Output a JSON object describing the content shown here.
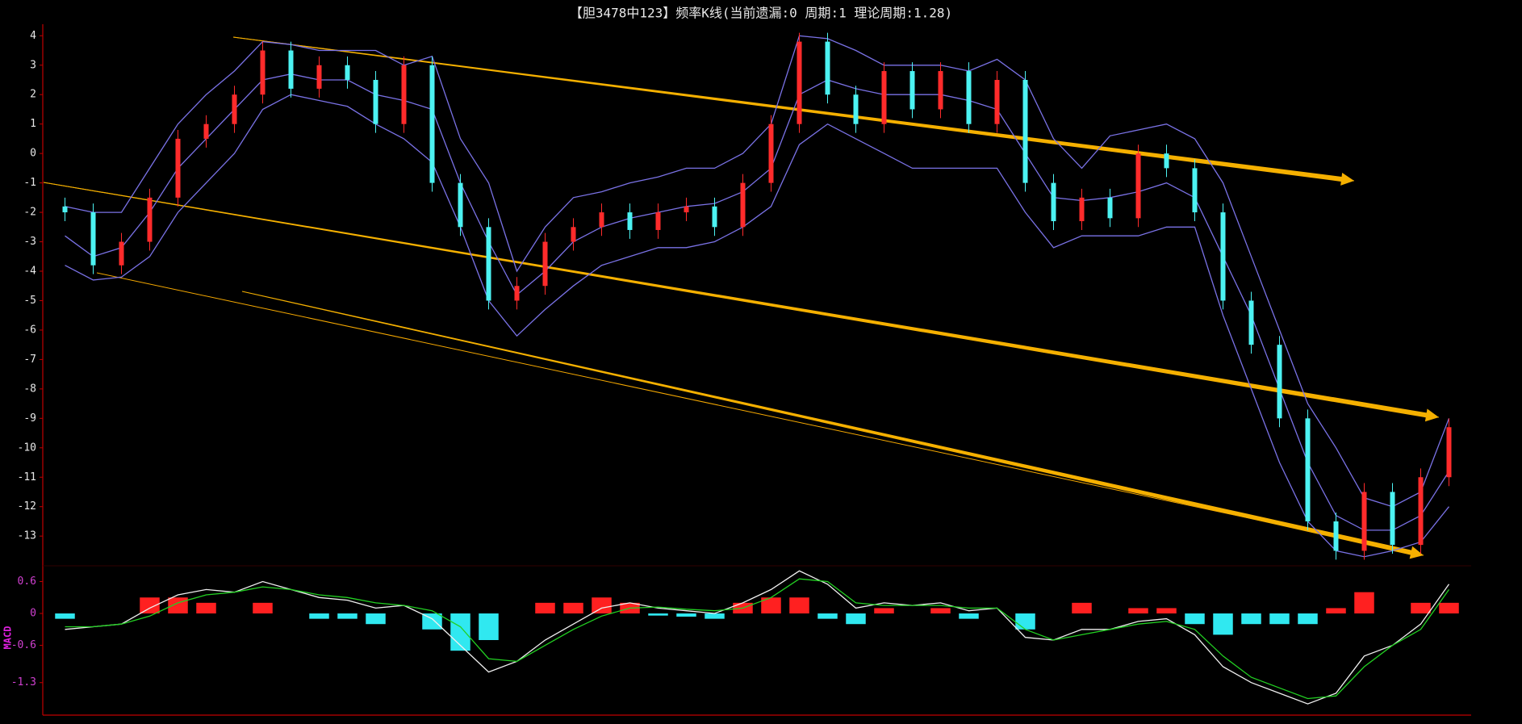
{
  "chart_data": [
    {
      "type": "candlestick",
      "title": "【胆3478中123】频率K线(当前遗漏:0 周期:1 理论周期:1.28)",
      "open": [
        -1.8,
        -2,
        -3.8,
        -3,
        -1.5,
        0.5,
        1,
        2,
        3.5,
        2.2,
        3,
        2.5,
        1,
        3,
        -1,
        -2.5,
        -5,
        -4.5,
        -3,
        -2.5,
        -2,
        -2.6,
        -2,
        -1.8,
        -2.5,
        -1,
        1,
        3.8,
        2,
        1,
        2.8,
        1.5,
        2.8,
        1,
        2.5,
        -1,
        -2.3,
        -1.5,
        -2.2,
        0,
        -0.5,
        -2,
        -5,
        -6.5,
        -9,
        -12.5,
        -13.5,
        -11.5,
        -13.3,
        -11
      ],
      "high": [
        -1.5,
        -1.7,
        -2.7,
        -1.2,
        0.8,
        1.3,
        2.3,
        3.8,
        3.8,
        3.3,
        3.3,
        2.8,
        3.3,
        3.3,
        -0.7,
        -2.2,
        -4.2,
        -2.7,
        -2.2,
        -1.7,
        -1.7,
        -1.7,
        -1.5,
        -1.5,
        -0.7,
        1.3,
        4.1,
        4.1,
        2.3,
        3.1,
        3.1,
        3.1,
        3.1,
        2.8,
        2.8,
        -0.7,
        -1.2,
        -1.2,
        0.3,
        0.3,
        -0.2,
        -1.7,
        -4.7,
        -6.2,
        -8.7,
        -12.2,
        -11.2,
        -11.2,
        -10.7,
        -9
      ],
      "low": [
        -2.3,
        -4.1,
        -4.1,
        -3.3,
        -1.8,
        0.2,
        0.7,
        1.7,
        1.9,
        1.9,
        2.2,
        0.7,
        0.7,
        -1.3,
        -2.8,
        -5.3,
        -5.3,
        -4.8,
        -3.3,
        -2.8,
        -2.9,
        -2.9,
        -2.3,
        -2.8,
        -2.8,
        -1.3,
        0.7,
        1.7,
        0.7,
        0.7,
        1.2,
        1.2,
        0.7,
        0.7,
        -1.3,
        -2.6,
        -2.6,
        -2.5,
        -2.5,
        -0.8,
        -2.3,
        -5.3,
        -6.8,
        -9.3,
        -12.8,
        -13.8,
        -13.8,
        -13.6,
        -13.6,
        -11.3
      ],
      "close": [
        -2,
        -3.8,
        -3,
        -1.5,
        0.5,
        1,
        2,
        3.5,
        2.2,
        3,
        2.5,
        1,
        3,
        -1,
        -2.5,
        -5,
        -4.5,
        -3,
        -2.5,
        -2,
        -2.6,
        -2,
        -1.8,
        -2.5,
        -1,
        1,
        3.8,
        2,
        1,
        2.8,
        1.5,
        2.8,
        1,
        2.5,
        -1,
        -2.3,
        -1.5,
        -2.2,
        0,
        -0.5,
        -2,
        -5,
        -6.5,
        -9,
        -12.5,
        -13.5,
        -11.5,
        -13.3,
        -11,
        -9.3
      ],
      "up_color": "#ff2b2b",
      "down_color": "#4cf2f2",
      "series": [
        {
          "color": "#7a72e6",
          "values": [
            -1.8,
            -2,
            -2,
            -0.5,
            1,
            2,
            2.8,
            3.8,
            3.7,
            3.5,
            3.5,
            3.5,
            3,
            3.3,
            0.5,
            -1,
            -4,
            -2.5,
            -1.5,
            -1.3,
            -1,
            -0.8,
            -0.5,
            -0.5,
            0,
            1,
            4,
            3.9,
            3.5,
            3,
            3,
            3,
            2.8,
            3.2,
            2.5,
            0.5,
            -0.5,
            0.6,
            0.8,
            1,
            0.5,
            -1,
            -3.5,
            -6,
            -8.5,
            -10,
            -11.7,
            -12,
            -11.5,
            -9
          ]
        },
        {
          "color": "#7a72e6",
          "values": [
            -2.8,
            -3.5,
            -3.2,
            -2,
            -0.5,
            0.5,
            1.5,
            2.5,
            2.7,
            2.5,
            2.5,
            2,
            1.8,
            1.5,
            -1,
            -3,
            -4.8,
            -4,
            -3,
            -2.5,
            -2.2,
            -2,
            -1.8,
            -1.7,
            -1.3,
            -0.5,
            2,
            2.5,
            2.2,
            2,
            2,
            2,
            1.8,
            1.5,
            0,
            -1.5,
            -1.6,
            -1.5,
            -1.3,
            -1,
            -1.5,
            -3.5,
            -5.5,
            -8,
            -10.5,
            -12.3,
            -12.8,
            -12.8,
            -12.3,
            -10.8
          ]
        },
        {
          "color": "#7a72e6",
          "values": [
            -3.8,
            -4.3,
            -4.2,
            -3.5,
            -2,
            -1,
            0,
            1.5,
            2,
            1.8,
            1.6,
            1,
            0.5,
            -0.3,
            -2.5,
            -5,
            -6.2,
            -5.3,
            -4.5,
            -3.8,
            -3.5,
            -3.2,
            -3.2,
            -3,
            -2.5,
            -1.8,
            0.3,
            1,
            0.5,
            0,
            -0.5,
            -0.5,
            -0.5,
            -0.5,
            -2,
            -3.2,
            -2.8,
            -2.8,
            -2.8,
            -2.5,
            -2.5,
            -5.5,
            -8,
            -10.5,
            -12.5,
            -13.5,
            -13.7,
            -13.5,
            -13.2,
            -12
          ]
        }
      ],
      "ylim": [
        -13.9,
        4.2
      ],
      "yticks": [
        4,
        3,
        2,
        1,
        0,
        -1,
        -2,
        -3,
        -4,
        -5,
        -6,
        -7,
        -8,
        -9,
        -10,
        -11,
        -12,
        -13
      ]
    },
    {
      "type": "macd",
      "ylabel": "MACD",
      "series": [
        {
          "color": "#f0f0f0",
          "values": [
            -0.3,
            -0.25,
            -0.2,
            0.1,
            0.35,
            0.45,
            0.4,
            0.6,
            0.45,
            0.3,
            0.25,
            0.1,
            0.15,
            -0.1,
            -0.6,
            -1.1,
            -0.9,
            -0.5,
            -0.2,
            0.1,
            0.2,
            0.1,
            0.05,
            0,
            0.2,
            0.45,
            0.8,
            0.55,
            0.1,
            0.2,
            0.15,
            0.2,
            0.05,
            0.1,
            -0.45,
            -0.5,
            -0.3,
            -0.3,
            -0.15,
            -0.1,
            -0.4,
            -1.0,
            -1.3,
            -1.5,
            -1.7,
            -1.5,
            -0.8,
            -0.6,
            -0.2,
            0.55
          ]
        },
        {
          "color": "#22d022",
          "values": [
            -0.25,
            -0.25,
            -0.2,
            -0.05,
            0.2,
            0.35,
            0.4,
            0.5,
            0.45,
            0.35,
            0.3,
            0.2,
            0.15,
            0.05,
            -0.25,
            -0.85,
            -0.9,
            -0.6,
            -0.3,
            -0.05,
            0.1,
            0.12,
            0.08,
            0.05,
            0.1,
            0.3,
            0.65,
            0.6,
            0.2,
            0.15,
            0.15,
            0.15,
            0.1,
            0.1,
            -0.3,
            -0.5,
            -0.4,
            -0.3,
            -0.2,
            -0.15,
            -0.3,
            -0.8,
            -1.2,
            -1.4,
            -1.6,
            -1.55,
            -1.0,
            -0.6,
            -0.3,
            0.45
          ]
        }
      ],
      "histogram": [
        -0.1,
        0,
        0,
        0.3,
        0.3,
        0.2,
        0,
        0.2,
        0,
        -0.1,
        -0.1,
        -0.2,
        0,
        -0.3,
        -0.7,
        -0.5,
        0,
        0.2,
        0.2,
        0.3,
        0.2,
        -0.04,
        -0.06,
        -0.1,
        0.2,
        0.3,
        0.3,
        -0.1,
        -0.2,
        0.1,
        0,
        0.1,
        -0.1,
        0,
        -0.3,
        0,
        0.2,
        0,
        0.1,
        0.1,
        -0.2,
        -0.4,
        -0.2,
        -0.2,
        -0.2,
        0.1,
        0.4,
        0,
        0.2,
        0.2
      ],
      "up_color": "#ff2020",
      "down_color": "#30e8f0",
      "ylim": [
        -1.85,
        0.85
      ],
      "yticks": [
        0.6,
        0,
        -0.6,
        -1.3
      ]
    }
  ]
}
